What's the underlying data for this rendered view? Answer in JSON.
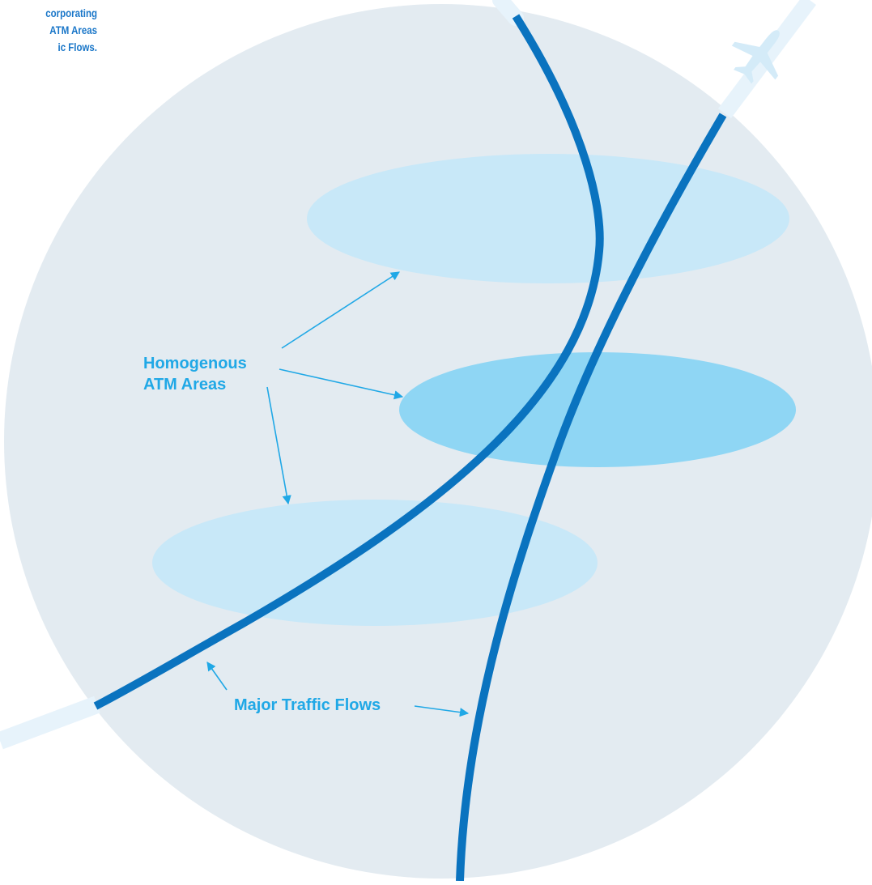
{
  "caption": {
    "line1": "corporating",
    "line2": "ATM Areas",
    "line3": "ic Flows."
  },
  "labels": {
    "areas_line1": "Homogenous",
    "areas_line2": "ATM Areas",
    "flows": "Major Traffic Flows"
  },
  "icons": {
    "aircraft": "airplane-icon"
  },
  "colors": {
    "background_circle": "#e3ebf1",
    "area_light": "#c8e8f8",
    "area_medium": "#8fd6f4",
    "traffic_flow": "#0a73bf",
    "label": "#20a8e6",
    "contrail": "#e7f3fb"
  }
}
